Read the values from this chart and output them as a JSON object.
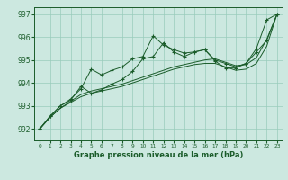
{
  "xlabel": "Graphe pression niveau de la mer (hPa)",
  "background_color": "#cce8e0",
  "plot_bg_color": "#cce8e0",
  "grid_color": "#99ccbb",
  "line_color": "#1a5c2a",
  "xlim": [
    -0.5,
    23.5
  ],
  "ylim": [
    991.5,
    997.3
  ],
  "xticks": [
    0,
    1,
    2,
    3,
    4,
    5,
    6,
    7,
    8,
    9,
    10,
    11,
    12,
    13,
    14,
    15,
    16,
    17,
    18,
    19,
    20,
    21,
    22,
    23
  ],
  "yticks": [
    992,
    993,
    994,
    995,
    996,
    997
  ],
  "series": [
    {
      "x": [
        0,
        1,
        2,
        3,
        4,
        5,
        6,
        7,
        8,
        9,
        10,
        11,
        12,
        13,
        14,
        15,
        16,
        17,
        18,
        19,
        20,
        21,
        22,
        23
      ],
      "y": [
        992.0,
        992.5,
        992.9,
        993.2,
        993.5,
        993.65,
        993.75,
        993.85,
        993.95,
        994.1,
        994.25,
        994.4,
        994.55,
        994.7,
        994.8,
        994.9,
        995.0,
        995.05,
        994.9,
        994.75,
        994.8,
        995.1,
        995.9,
        997.0
      ],
      "has_markers": false
    },
    {
      "x": [
        0,
        1,
        2,
        3,
        4,
        5,
        6,
        7,
        8,
        9,
        10,
        11,
        12,
        13,
        14,
        15,
        16,
        17,
        18,
        19,
        20,
        21,
        22,
        23
      ],
      "y": [
        992.0,
        992.5,
        992.9,
        993.15,
        993.4,
        993.55,
        993.65,
        993.75,
        993.85,
        994.0,
        994.15,
        994.3,
        994.45,
        994.6,
        994.7,
        994.8,
        994.85,
        994.85,
        994.7,
        994.55,
        994.6,
        994.85,
        995.6,
        997.0
      ],
      "has_markers": false
    },
    {
      "x": [
        0,
        1,
        2,
        3,
        4,
        5,
        6,
        7,
        8,
        9,
        10,
        11,
        12,
        13,
        14,
        15,
        16,
        17,
        18,
        19,
        20,
        21,
        22,
        23
      ],
      "y": [
        992.0,
        992.55,
        993.0,
        993.3,
        993.75,
        994.6,
        994.35,
        994.55,
        994.7,
        995.05,
        995.15,
        996.05,
        995.65,
        995.45,
        995.3,
        995.35,
        995.45,
        995.0,
        994.85,
        994.7,
        994.85,
        995.5,
        996.75,
        997.0
      ],
      "has_markers": true
    },
    {
      "x": [
        0,
        1,
        2,
        3,
        4,
        5,
        6,
        7,
        8,
        9,
        10,
        11,
        12,
        13,
        14,
        15,
        16,
        17,
        18,
        19,
        20,
        21,
        22,
        23
      ],
      "y": [
        992.0,
        992.55,
        993.0,
        993.25,
        993.85,
        993.55,
        993.7,
        993.95,
        994.15,
        994.5,
        995.05,
        995.15,
        995.75,
        995.35,
        995.15,
        995.35,
        995.45,
        994.95,
        994.65,
        994.65,
        994.85,
        995.35,
        995.85,
        997.0
      ],
      "has_markers": true
    }
  ]
}
